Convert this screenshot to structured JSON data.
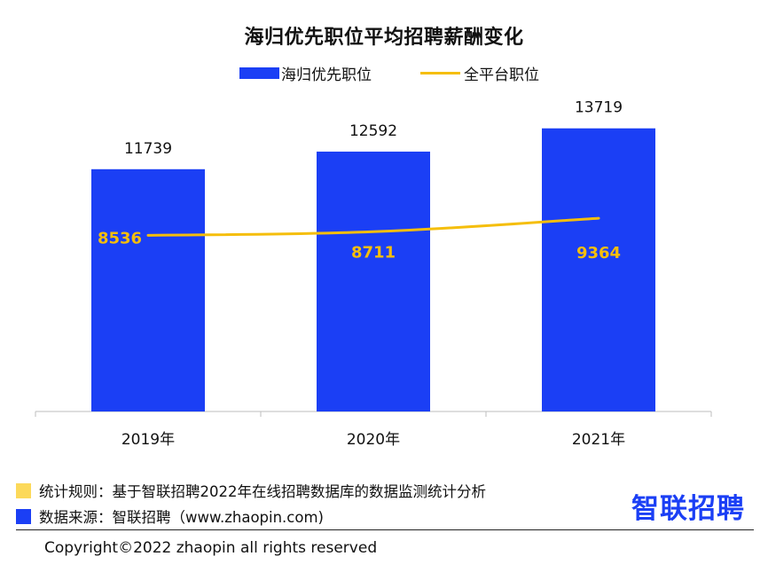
{
  "chart_data": {
    "type": "bar",
    "title": "海归优先职位平均招聘薪酬变化",
    "categories": [
      "2019年",
      "2020年",
      "2021年"
    ],
    "series": [
      {
        "name": "海归优先职位",
        "type": "bar",
        "values": [
          11739,
          12592,
          13719
        ],
        "color": "#1b3ff5"
      },
      {
        "name": "全平台职位",
        "type": "line",
        "values": [
          8536,
          8711,
          9364
        ],
        "color": "#f5be0b"
      }
    ],
    "ylim": [
      0,
      16500
    ],
    "grid": false,
    "legend_position": "top-center"
  },
  "notes": {
    "rule_label": "统计规则：基于智联招聘2022年在线招聘数据库的数据监测统计分析",
    "rule_color": "#fcd95a",
    "source_label": "数据来源：智联招聘（www.zhaopin.com)",
    "source_color": "#1b3ff5"
  },
  "brand": {
    "name": "智联招聘",
    "color": "#1b3ff5"
  },
  "footer": {
    "copyright": "Copyright©2022 zhaopin all rights reserved"
  }
}
